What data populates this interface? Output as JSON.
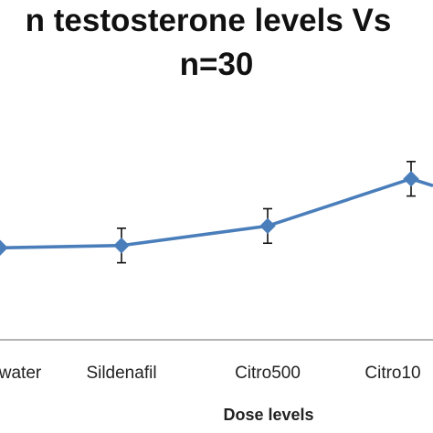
{
  "chart_data": {
    "type": "line",
    "title": [
      "n testosterone levels Vs",
      "n=30"
    ],
    "xlabel": "Dose levels",
    "ylabel": "",
    "categories": [
      "water",
      "Sildenafil",
      "Citro500",
      "Citro10"
    ],
    "series": [
      {
        "values": [
          1.0,
          1.1,
          1.95,
          4.0
        ],
        "error": [
          null,
          0.75,
          0.75,
          0.75
        ]
      }
    ],
    "ylim": [
      -3.0,
      8.0
    ],
    "grid": false,
    "legend": "none",
    "colors": {
      "line": "#4a7ebb",
      "marker": "#4a7ebb",
      "errorbar": "#111111",
      "axis": "#868686"
    }
  }
}
